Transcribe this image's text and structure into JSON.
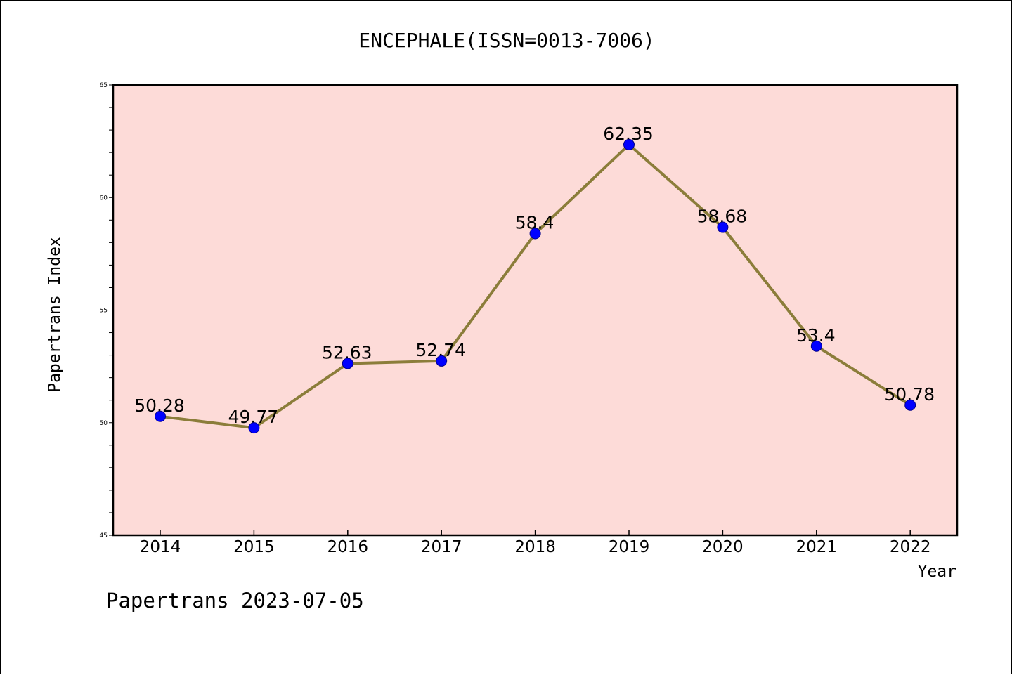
{
  "chart_data": {
    "type": "line",
    "title": "ENCEPHALE(ISSN=0013-7006)",
    "xlabel": "Year",
    "ylabel": "Papertrans Index",
    "categories": [
      "2014",
      "2015",
      "2016",
      "2017",
      "2018",
      "2019",
      "2020",
      "2021",
      "2022"
    ],
    "values": [
      50.28,
      49.77,
      52.63,
      52.74,
      58.4,
      62.35,
      58.68,
      53.4,
      50.78
    ],
    "data_labels": [
      "50.28",
      "49.77",
      "52.63",
      "52.74",
      "58.4",
      "62.35",
      "58.68",
      "53.4",
      "50.78"
    ],
    "ylim": [
      45,
      65
    ],
    "y_major_ticks": [
      45,
      50,
      55,
      60,
      65
    ],
    "y_minor_step": 1,
    "grid": false,
    "legend": "none"
  },
  "footer": {
    "text": "Papertrans 2023-07-05"
  },
  "colors": {
    "plot_background": "#fddbd8",
    "line": "#8b7d3a",
    "marker_fill": "#0000ff",
    "marker_edge": "#00008b",
    "axis": "#000000",
    "text": "#000000"
  }
}
